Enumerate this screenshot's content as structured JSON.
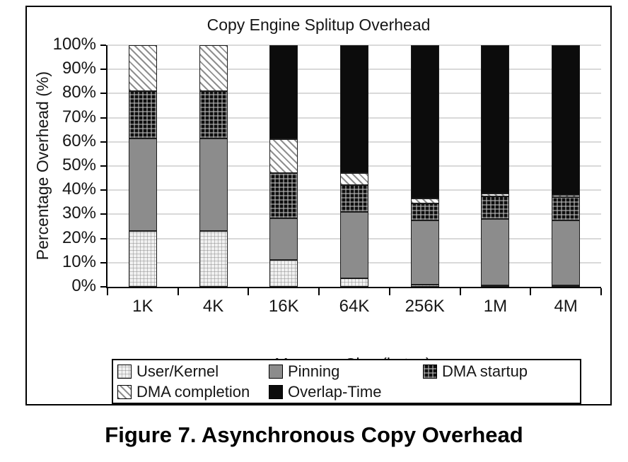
{
  "figure": {
    "caption": "Figure 7. Asynchronous Copy Overhead"
  },
  "chart_data": {
    "type": "bar",
    "stacked": true,
    "orientation": "vertical",
    "title": "Copy Engine Splitup Overhead",
    "xlabel": "Message Size (bytes)",
    "ylabel": "Percentage Overhead (%)",
    "units": "percent",
    "ylim": [
      0,
      100
    ],
    "ytick_step": 10,
    "ytick_suffix": "%",
    "grid": "horizontal",
    "legend_position": "bottom-box",
    "categories": [
      "1K",
      "4K",
      "16K",
      "64K",
      "256K",
      "1M",
      "4M"
    ],
    "series": [
      {
        "name": "User/Kernel",
        "pattern": "light-grid",
        "values": [
          23,
          23,
          11,
          3.5,
          1,
          0.5,
          0.5
        ]
      },
      {
        "name": "Pinning",
        "pattern": "solid-gray",
        "values": [
          38.5,
          38.5,
          17.5,
          27.5,
          26.5,
          27.5,
          27
        ]
      },
      {
        "name": "DMA startup",
        "pattern": "dark-check",
        "values": [
          19.5,
          19.5,
          18.5,
          11,
          7,
          9.5,
          9.5
        ]
      },
      {
        "name": "DMA completion",
        "pattern": "diagonal-hatch",
        "values": [
          19,
          19,
          14,
          5,
          2,
          1,
          1
        ]
      },
      {
        "name": "Overlap-Time",
        "pattern": "solid-black",
        "values": [
          0,
          0,
          39,
          53,
          63.5,
          61.5,
          62
        ]
      }
    ],
    "colors": {
      "solid_gray": "#8c8c8c",
      "solid_black": "#0c0c0c",
      "light_fill": "#f1f1f1",
      "hatch_line": "#8f8f8f",
      "grid_line": "#d9d9d9"
    }
  }
}
